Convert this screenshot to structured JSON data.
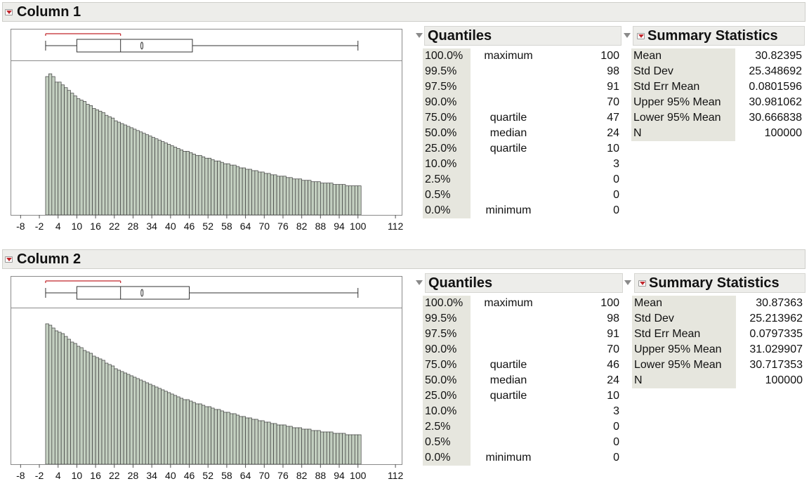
{
  "colors": {
    "bar_fill": "#c3cfc0",
    "bar_stroke": "#3c3c3c",
    "ci_bracket": "#c0262b",
    "header_bg": "#ededea",
    "label_bg": "#e6e6de"
  },
  "icons": {
    "column_menu": "red-triangle-menu-icon",
    "section_toggle": "disclosure-triangle-icon"
  },
  "panels": [
    {
      "title": "Column 1",
      "quantiles_title": "Quantiles",
      "summary_title": "Summary Statistics",
      "quantiles": [
        {
          "pct": "100.0%",
          "label": "maximum",
          "value": "100"
        },
        {
          "pct": "99.5%",
          "label": "",
          "value": "98"
        },
        {
          "pct": "97.5%",
          "label": "",
          "value": "91"
        },
        {
          "pct": "90.0%",
          "label": "",
          "value": "70"
        },
        {
          "pct": "75.0%",
          "label": "quartile",
          "value": "47"
        },
        {
          "pct": "50.0%",
          "label": "median",
          "value": "24"
        },
        {
          "pct": "25.0%",
          "label": "quartile",
          "value": "10"
        },
        {
          "pct": "10.0%",
          "label": "",
          "value": "3"
        },
        {
          "pct": "2.5%",
          "label": "",
          "value": "0"
        },
        {
          "pct": "0.5%",
          "label": "",
          "value": "0"
        },
        {
          "pct": "0.0%",
          "label": "minimum",
          "value": "0"
        }
      ],
      "summary": [
        {
          "label": "Mean",
          "value": "30.82395"
        },
        {
          "label": "Std Dev",
          "value": "25.348692"
        },
        {
          "label": "Std Err Mean",
          "value": "0.0801596"
        },
        {
          "label": "Upper 95% Mean",
          "value": "30.981062"
        },
        {
          "label": "Lower 95% Mean",
          "value": "30.666838"
        },
        {
          "label": "N",
          "value": "100000"
        }
      ]
    },
    {
      "title": "Column 2",
      "quantiles_title": "Quantiles",
      "summary_title": "Summary Statistics",
      "quantiles": [
        {
          "pct": "100.0%",
          "label": "maximum",
          "value": "100"
        },
        {
          "pct": "99.5%",
          "label": "",
          "value": "98"
        },
        {
          "pct": "97.5%",
          "label": "",
          "value": "91"
        },
        {
          "pct": "90.0%",
          "label": "",
          "value": "70"
        },
        {
          "pct": "75.0%",
          "label": "quartile",
          "value": "46"
        },
        {
          "pct": "50.0%",
          "label": "median",
          "value": "24"
        },
        {
          "pct": "25.0%",
          "label": "quartile",
          "value": "10"
        },
        {
          "pct": "10.0%",
          "label": "",
          "value": "3"
        },
        {
          "pct": "2.5%",
          "label": "",
          "value": "0"
        },
        {
          "pct": "0.5%",
          "label": "",
          "value": "0"
        },
        {
          "pct": "0.0%",
          "label": "minimum",
          "value": "0"
        }
      ],
      "summary": [
        {
          "label": "Mean",
          "value": "30.87363"
        },
        {
          "label": "Std Dev",
          "value": "25.213962"
        },
        {
          "label": "Std Err Mean",
          "value": "0.0797335"
        },
        {
          "label": "Upper 95% Mean",
          "value": "31.029907"
        },
        {
          "label": "Lower 95% Mean",
          "value": "30.717353"
        },
        {
          "label": "N",
          "value": "100000"
        }
      ]
    }
  ],
  "chart_data": [
    {
      "type": "bar",
      "x_tick_labels": [
        "-8",
        "-2",
        "4",
        "10",
        "16",
        "22",
        "28",
        "34",
        "40",
        "46",
        "52",
        "58",
        "64",
        "70",
        "76",
        "82",
        "88",
        "94",
        "100",
        "112"
      ],
      "xlim": [
        -11,
        114
      ],
      "ylim": [
        0,
        1.0
      ],
      "bin_start": 0,
      "bin_width": 1,
      "relative_heights": [
        1.0,
        1.02,
        1.0,
        0.96,
        0.96,
        0.94,
        0.92,
        0.9,
        0.88,
        0.86,
        0.84,
        0.83,
        0.82,
        0.8,
        0.79,
        0.77,
        0.76,
        0.75,
        0.74,
        0.72,
        0.71,
        0.7,
        0.68,
        0.67,
        0.66,
        0.65,
        0.64,
        0.63,
        0.62,
        0.61,
        0.6,
        0.59,
        0.58,
        0.57,
        0.56,
        0.55,
        0.54,
        0.53,
        0.52,
        0.51,
        0.5,
        0.49,
        0.48,
        0.47,
        0.46,
        0.46,
        0.45,
        0.44,
        0.43,
        0.43,
        0.42,
        0.41,
        0.41,
        0.4,
        0.39,
        0.39,
        0.38,
        0.37,
        0.37,
        0.36,
        0.36,
        0.35,
        0.34,
        0.34,
        0.33,
        0.33,
        0.32,
        0.32,
        0.31,
        0.31,
        0.3,
        0.3,
        0.29,
        0.29,
        0.28,
        0.28,
        0.28,
        0.27,
        0.27,
        0.26,
        0.26,
        0.26,
        0.25,
        0.25,
        0.25,
        0.24,
        0.24,
        0.24,
        0.23,
        0.23,
        0.23,
        0.23,
        0.22,
        0.22,
        0.22,
        0.22,
        0.21,
        0.21,
        0.21,
        0.21,
        0.21
      ],
      "boxplot": {
        "min": 0,
        "q1": 10,
        "median": 24,
        "q3": 47,
        "max": 100,
        "mean": 30.82395,
        "shortest_half": [
          0,
          24
        ]
      }
    },
    {
      "type": "bar",
      "x_tick_labels": [
        "-8",
        "-2",
        "4",
        "10",
        "16",
        "22",
        "28",
        "34",
        "40",
        "46",
        "52",
        "58",
        "64",
        "70",
        "76",
        "82",
        "88",
        "94",
        "100",
        "112"
      ],
      "xlim": [
        -11,
        114
      ],
      "ylim": [
        0,
        1.0
      ],
      "bin_start": 0,
      "bin_width": 1,
      "relative_heights": [
        1.0,
        0.99,
        0.97,
        0.95,
        0.94,
        0.93,
        0.91,
        0.89,
        0.87,
        0.86,
        0.84,
        0.83,
        0.81,
        0.8,
        0.79,
        0.77,
        0.76,
        0.75,
        0.74,
        0.72,
        0.71,
        0.7,
        0.68,
        0.67,
        0.66,
        0.65,
        0.64,
        0.63,
        0.62,
        0.61,
        0.6,
        0.59,
        0.58,
        0.57,
        0.56,
        0.55,
        0.54,
        0.53,
        0.52,
        0.51,
        0.5,
        0.49,
        0.48,
        0.47,
        0.46,
        0.46,
        0.45,
        0.44,
        0.43,
        0.43,
        0.42,
        0.41,
        0.41,
        0.4,
        0.39,
        0.39,
        0.38,
        0.37,
        0.37,
        0.36,
        0.36,
        0.35,
        0.34,
        0.34,
        0.33,
        0.33,
        0.32,
        0.32,
        0.31,
        0.31,
        0.3,
        0.3,
        0.29,
        0.29,
        0.28,
        0.28,
        0.28,
        0.27,
        0.27,
        0.26,
        0.26,
        0.26,
        0.25,
        0.25,
        0.25,
        0.24,
        0.24,
        0.24,
        0.23,
        0.23,
        0.23,
        0.23,
        0.22,
        0.22,
        0.22,
        0.22,
        0.21,
        0.21,
        0.21,
        0.21,
        0.21
      ],
      "boxplot": {
        "min": 0,
        "q1": 10,
        "median": 24,
        "q3": 46,
        "max": 100,
        "mean": 30.87363,
        "shortest_half": [
          0,
          24
        ]
      }
    }
  ]
}
